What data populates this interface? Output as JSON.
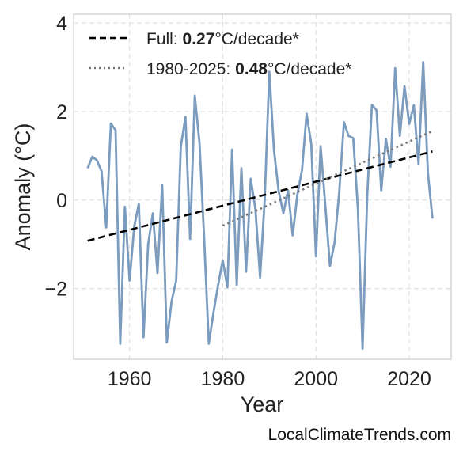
{
  "chart_data": {
    "type": "line",
    "xlabel": "Year",
    "ylabel": "Anomaly (°C)",
    "xlim": [
      1948,
      2029
    ],
    "ylim": [
      -3.6,
      4.2
    ],
    "xticks": [
      1960,
      1980,
      2000,
      2020
    ],
    "yticks": [
      -2,
      0,
      2,
      4
    ],
    "ytick_labels": [
      "−2",
      "0",
      "2",
      "4"
    ],
    "grid": true,
    "legend_position": "top-left",
    "series": [
      {
        "style": "solid",
        "color": "#7b9cbe",
        "x": [
          1951,
          1952,
          1953,
          1954,
          1955,
          1956,
          1957,
          1958,
          1959,
          1960,
          1961,
          1962,
          1963,
          1964,
          1965,
          1966,
          1967,
          1968,
          1969,
          1970,
          1971,
          1972,
          1973,
          1974,
          1975,
          1976,
          1977,
          1978,
          1979,
          1980,
          1981,
          1982,
          1983,
          1984,
          1985,
          1986,
          1987,
          1988,
          1989,
          1990,
          1991,
          1992,
          1993,
          1994,
          1995,
          1996,
          1997,
          1998,
          1999,
          2000,
          2001,
          2002,
          2003,
          2004,
          2005,
          2006,
          2007,
          2008,
          2009,
          2010,
          2011,
          2012,
          2013,
          2014,
          2015,
          2016,
          2017,
          2018,
          2019,
          2020,
          2021,
          2022,
          2023,
          2024,
          2025
        ],
        "y": [
          0.72,
          0.98,
          0.9,
          0.65,
          -0.62,
          1.73,
          1.58,
          -3.25,
          -0.15,
          -1.82,
          -0.6,
          -0.08,
          -3.1,
          -1.0,
          -0.3,
          -1.65,
          0.35,
          -3.22,
          -2.3,
          -1.82,
          1.2,
          1.88,
          -0.88,
          2.36,
          1.3,
          -0.85,
          -3.25,
          -2.55,
          -1.92,
          -1.36,
          -1.97,
          1.14,
          -1.92,
          0.72,
          -1.62,
          0.48,
          -0.2,
          -1.75,
          0.0,
          2.9,
          1.12,
          0.2,
          -0.3,
          0.22,
          -0.8,
          0.12,
          0.68,
          1.95,
          1.26,
          -1.27,
          1.22,
          -0.12,
          -1.49,
          -0.95,
          0.2,
          1.76,
          1.45,
          1.4,
          -0.2,
          -3.36,
          0.1,
          2.15,
          2.03,
          0.22,
          1.38,
          0.75,
          2.98,
          1.45,
          2.57,
          1.72,
          2.14,
          0.82,
          3.12,
          0.62,
          -0.42
        ]
      },
      {
        "name": "Full",
        "label_prefix": "Full: ",
        "rate": "0.27",
        "unit": "°C/decade*",
        "style": "dashed",
        "color": "#000000",
        "x": [
          1951,
          2025
        ],
        "y": [
          -0.92,
          1.1
        ]
      },
      {
        "name": "1980-2025",
        "label_prefix": "1980-2025: ",
        "rate": "0.48",
        "unit": "°C/decade*",
        "style": "dotted",
        "color": "#7a7a7a",
        "x": [
          1980,
          2025
        ],
        "y": [
          -0.58,
          1.56
        ]
      }
    ]
  },
  "watermark": "LocalClimateTrends.com"
}
